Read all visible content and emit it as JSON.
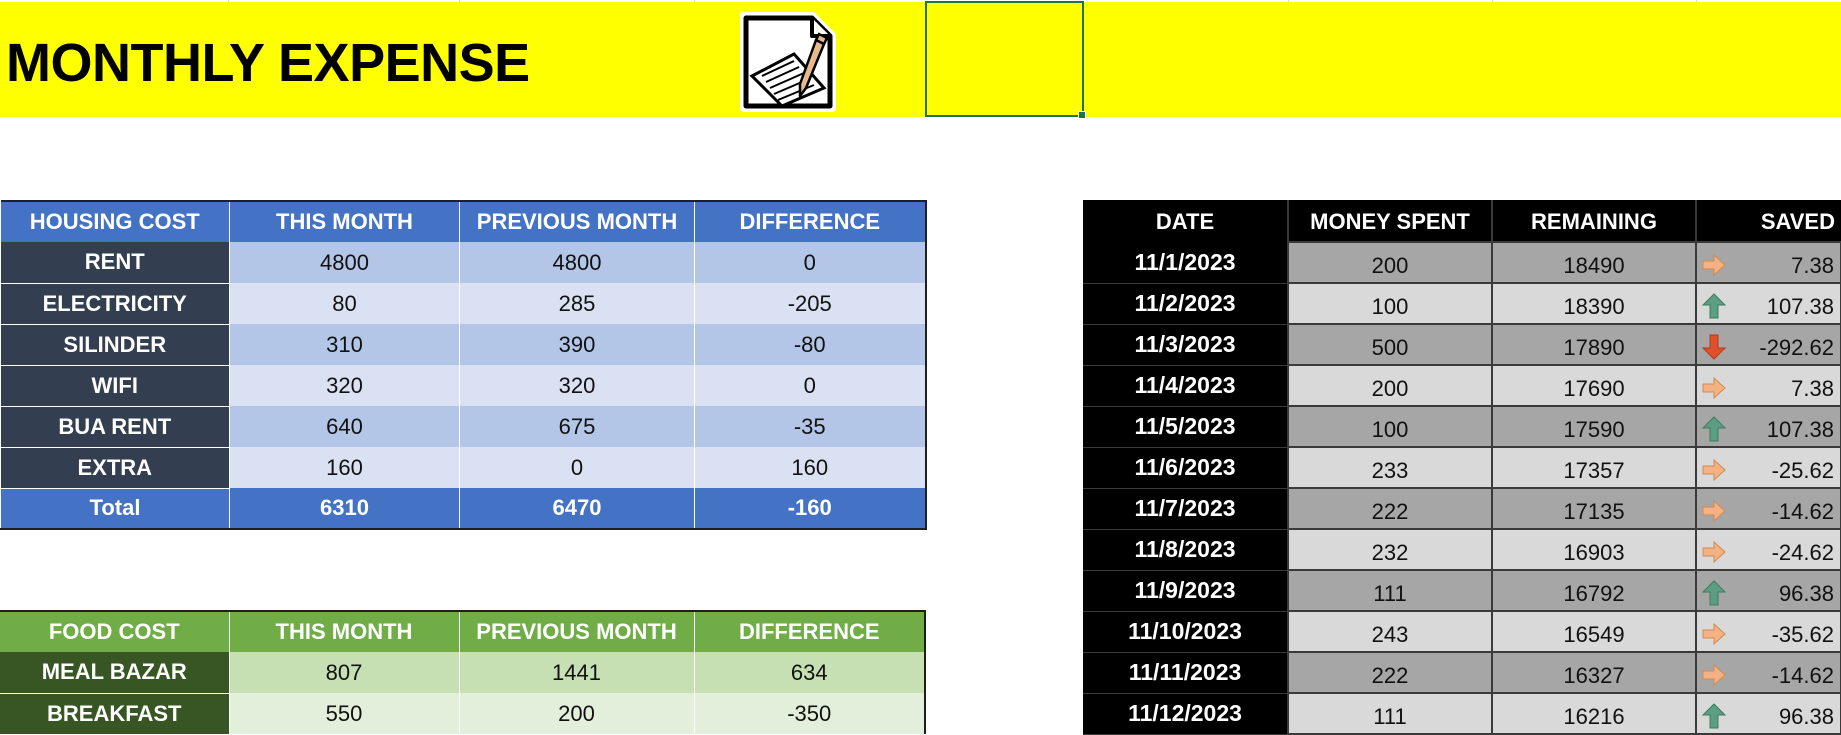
{
  "title": "MONTHLY EXPENSE",
  "housing": {
    "headers": [
      "HOUSING COST",
      "THIS MONTH",
      "PREVIOUS MONTH",
      "DIFFERENCE"
    ],
    "rows": [
      {
        "label": "RENT",
        "this_month": "4800",
        "previous_month": "4800",
        "difference": "0"
      },
      {
        "label": "ELECTRICITY",
        "this_month": "80",
        "previous_month": "285",
        "difference": "-205"
      },
      {
        "label": "SILINDER",
        "this_month": "310",
        "previous_month": "390",
        "difference": "-80"
      },
      {
        "label": "WIFI",
        "this_month": "320",
        "previous_month": "320",
        "difference": "0"
      },
      {
        "label": "BUA RENT",
        "this_month": "640",
        "previous_month": "675",
        "difference": "-35"
      },
      {
        "label": "EXTRA",
        "this_month": "160",
        "previous_month": "0",
        "difference": "160"
      }
    ],
    "total": {
      "label": "Total",
      "this_month": "6310",
      "previous_month": "6470",
      "difference": "-160"
    }
  },
  "food": {
    "headers": [
      "FOOD COST",
      "THIS MONTH",
      "PREVIOUS MONTH",
      "DIFFERENCE"
    ],
    "rows": [
      {
        "label": "MEAL BAZAR",
        "this_month": "807",
        "previous_month": "1441",
        "difference": "634"
      },
      {
        "label": "BREAKFAST",
        "this_month": "550",
        "previous_month": "200",
        "difference": "-350"
      }
    ]
  },
  "log": {
    "headers": [
      "DATE",
      "MONEY SPENT",
      "REMAINING",
      "SAVED"
    ],
    "rows": [
      {
        "date": "11/1/2023",
        "spent": "200",
        "remaining": "18490",
        "saved": "7.38",
        "indicator": "arrow-right"
      },
      {
        "date": "11/2/2023",
        "spent": "100",
        "remaining": "18390",
        "saved": "107.38",
        "indicator": "arrow-up"
      },
      {
        "date": "11/3/2023",
        "spent": "500",
        "remaining": "17890",
        "saved": "-292.62",
        "indicator": "arrow-down"
      },
      {
        "date": "11/4/2023",
        "spent": "200",
        "remaining": "17690",
        "saved": "7.38",
        "indicator": "arrow-right"
      },
      {
        "date": "11/5/2023",
        "spent": "100",
        "remaining": "17590",
        "saved": "107.38",
        "indicator": "arrow-up"
      },
      {
        "date": "11/6/2023",
        "spent": "233",
        "remaining": "17357",
        "saved": "-25.62",
        "indicator": "arrow-right"
      },
      {
        "date": "11/7/2023",
        "spent": "222",
        "remaining": "17135",
        "saved": "-14.62",
        "indicator": "arrow-right"
      },
      {
        "date": "11/8/2023",
        "spent": "232",
        "remaining": "16903",
        "saved": "-24.62",
        "indicator": "arrow-right"
      },
      {
        "date": "11/9/2023",
        "spent": "111",
        "remaining": "16792",
        "saved": "96.38",
        "indicator": "arrow-up"
      },
      {
        "date": "11/10/2023",
        "spent": "243",
        "remaining": "16549",
        "saved": "-35.62",
        "indicator": "arrow-right"
      },
      {
        "date": "11/11/2023",
        "spent": "222",
        "remaining": "16327",
        "saved": "-14.62",
        "indicator": "arrow-right"
      },
      {
        "date": "11/12/2023",
        "spent": "111",
        "remaining": "16216",
        "saved": "96.38",
        "indicator": "arrow-up"
      }
    ]
  },
  "colors": {
    "banner": "#ffff00",
    "housing_header": "#4472c4",
    "housing_label": "#333f50",
    "food_header": "#70ad47",
    "food_label": "#375623",
    "arrow_up": "#5b9e83",
    "arrow_down": "#e0502a",
    "arrow_right": "#f4b183"
  }
}
